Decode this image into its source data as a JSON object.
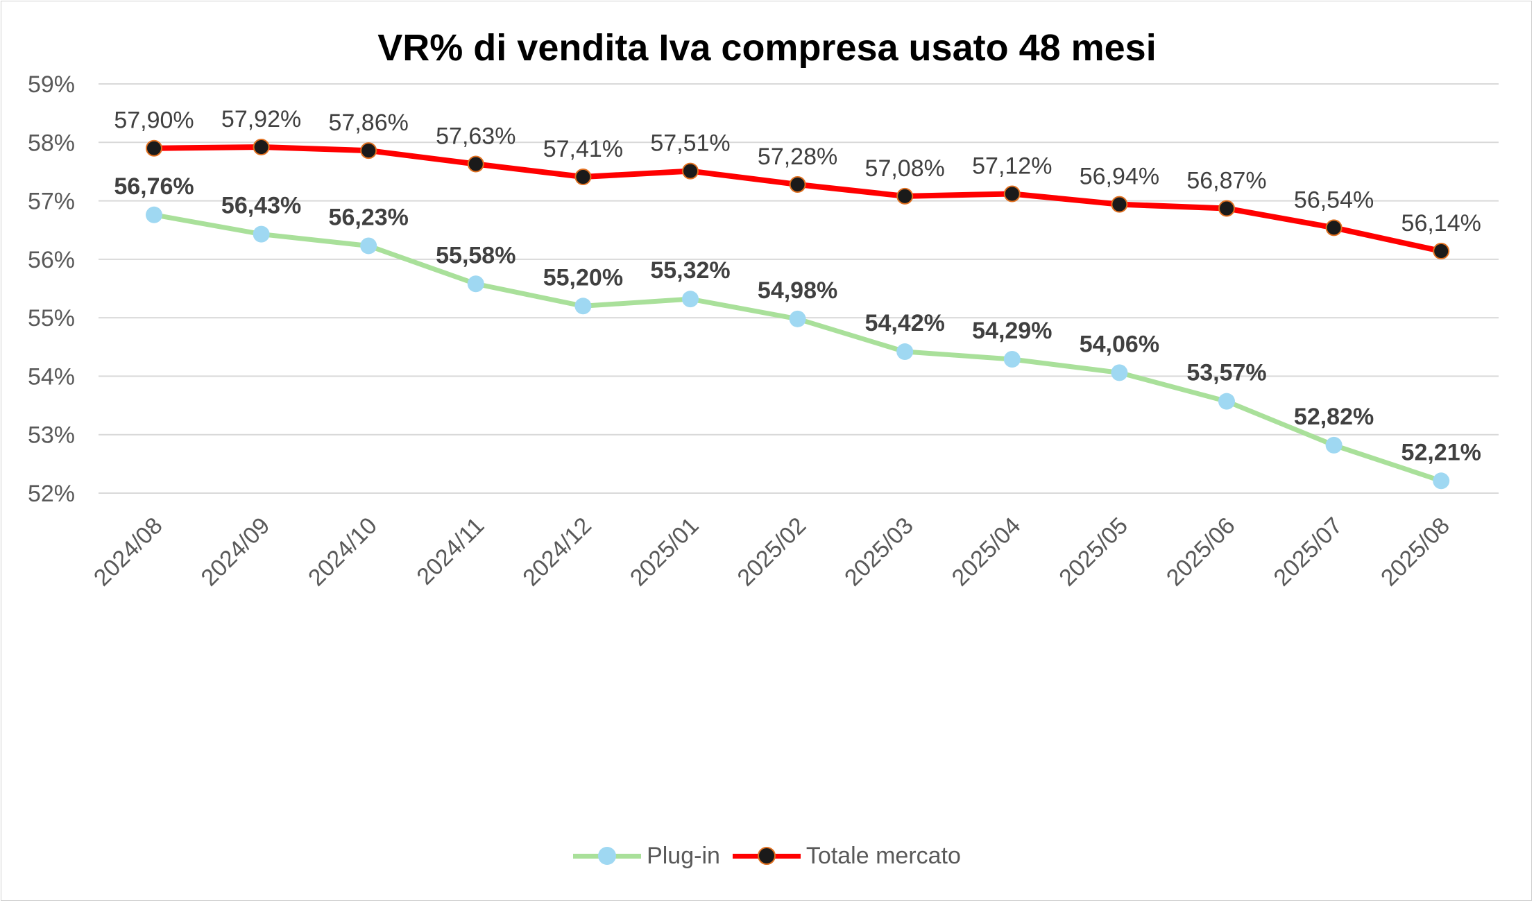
{
  "chart_data": {
    "type": "line",
    "title": "VR% di vendita Iva compresa usato 48 mesi",
    "categories": [
      "2024/08",
      "2024/09",
      "2024/10",
      "2024/11",
      "2024/12",
      "2025/01",
      "2025/02",
      "2025/03",
      "2025/04",
      "2025/05",
      "2025/06",
      "2025/07",
      "2025/08"
    ],
    "ylim": [
      52,
      59
    ],
    "yticks": [
      "52%",
      "53%",
      "54%",
      "55%",
      "56%",
      "57%",
      "58%",
      "59%"
    ],
    "grid": true,
    "legend_position": "bottom",
    "series": [
      {
        "name": "Plug-in",
        "color": "#a9e09a",
        "marker_color": "#9fd8f2",
        "values": [
          56.76,
          56.43,
          56.23,
          55.58,
          55.2,
          55.32,
          54.98,
          54.42,
          54.29,
          54.06,
          53.57,
          52.82,
          52.21
        ],
        "labels": [
          "56,76%",
          "56,43%",
          "56,23%",
          "55,58%",
          "55,20%",
          "55,32%",
          "54,98%",
          "54,42%",
          "54,29%",
          "54,06%",
          "53,57%",
          "52,82%",
          "52,21%"
        ]
      },
      {
        "name": "Totale mercato",
        "color": "#ff0000",
        "marker_color": "#1a1a1a",
        "marker_edge": "#e07020",
        "values": [
          57.9,
          57.92,
          57.86,
          57.63,
          57.41,
          57.51,
          57.28,
          57.08,
          57.12,
          56.94,
          56.87,
          56.54,
          56.14
        ],
        "labels": [
          "57,90%",
          "57,92%",
          "57,86%",
          "57,63%",
          "57,41%",
          "57,51%",
          "57,28%",
          "57,08%",
          "57,12%",
          "56,94%",
          "56,87%",
          "56,54%",
          "56,14%"
        ]
      }
    ]
  }
}
